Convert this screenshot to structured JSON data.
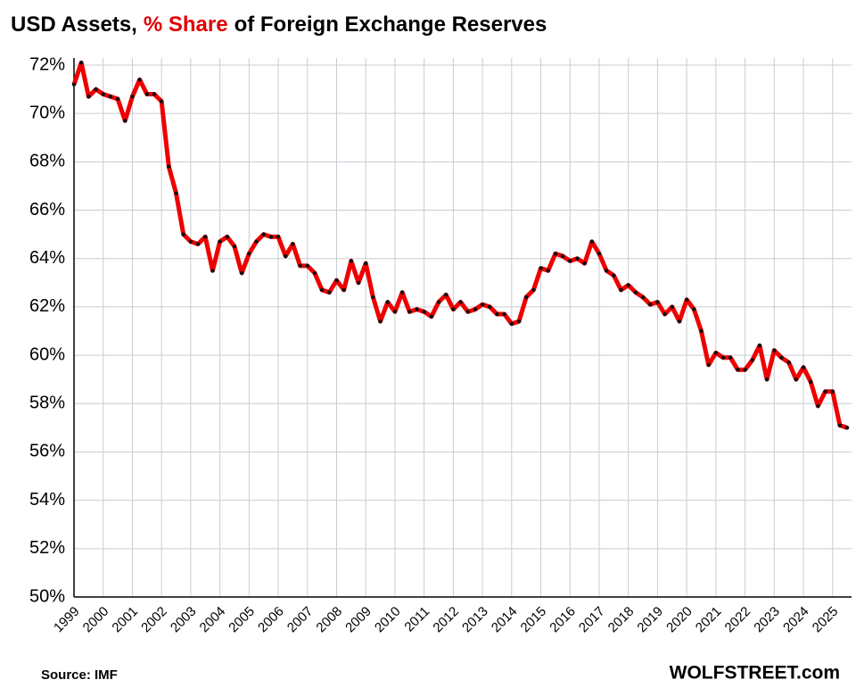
{
  "chart_data": {
    "type": "line",
    "title": [
      "USD Assets,",
      "% Share",
      "of Foreign Exchange Reserves"
    ],
    "title_colors": [
      "#000000",
      "#e00000",
      "#000000"
    ],
    "source": "Source: IMF",
    "brand": "WOLFSTREET.com",
    "color": "#ee0000",
    "marker_color": "#111111",
    "grid": true,
    "x": [
      1999,
      1999.25,
      1999.5,
      1999.75,
      2000,
      2000.25,
      2000.5,
      2000.75,
      2001,
      2001.25,
      2001.5,
      2001.75,
      2002,
      2002.25,
      2002.5,
      2002.75,
      2003,
      2003.25,
      2003.5,
      2003.75,
      2004,
      2004.25,
      2004.5,
      2004.75,
      2005,
      2005.25,
      2005.5,
      2005.75,
      2006,
      2006.25,
      2006.5,
      2006.75,
      2007,
      2007.25,
      2007.5,
      2007.75,
      2008,
      2008.25,
      2008.5,
      2008.75,
      2009,
      2009.25,
      2009.5,
      2009.75,
      2010,
      2010.25,
      2010.5,
      2010.75,
      2011,
      2011.25,
      2011.5,
      2011.75,
      2012,
      2012.25,
      2012.5,
      2012.75,
      2013,
      2013.25,
      2013.5,
      2013.75,
      2014,
      2014.25,
      2014.5,
      2014.75,
      2015,
      2015.25,
      2015.5,
      2015.75,
      2016,
      2016.25,
      2016.5,
      2016.75,
      2017,
      2017.25,
      2017.5,
      2017.75,
      2018,
      2018.25,
      2018.5,
      2018.75,
      2019,
      2019.25,
      2019.5,
      2019.75,
      2020,
      2020.25,
      2020.5,
      2020.75,
      2021,
      2021.25,
      2021.5,
      2021.75,
      2022,
      2022.25,
      2022.5,
      2022.75,
      2023,
      2023.25,
      2023.5,
      2023.75,
      2024,
      2024.25,
      2024.5,
      2024.75,
      2025,
      2025.25,
      2025.5
    ],
    "values": [
      71.2,
      72.1,
      70.7,
      71.0,
      70.8,
      70.7,
      70.6,
      69.7,
      70.7,
      71.4,
      70.8,
      70.8,
      70.5,
      67.8,
      66.7,
      65.0,
      64.7,
      64.6,
      64.9,
      63.5,
      64.7,
      64.9,
      64.5,
      63.4,
      64.2,
      64.7,
      65.0,
      64.9,
      64.9,
      64.1,
      64.6,
      63.7,
      63.7,
      63.4,
      62.7,
      62.6,
      63.1,
      62.7,
      63.9,
      63.0,
      63.8,
      62.4,
      61.4,
      62.2,
      61.8,
      62.6,
      61.8,
      61.9,
      61.8,
      61.6,
      62.2,
      62.5,
      61.9,
      62.2,
      61.8,
      61.9,
      62.1,
      62.0,
      61.7,
      61.7,
      61.3,
      61.4,
      62.4,
      62.7,
      63.6,
      63.5,
      64.2,
      64.1,
      63.9,
      64.0,
      63.8,
      64.7,
      64.2,
      63.5,
      63.3,
      62.7,
      62.9,
      62.6,
      62.4,
      62.1,
      62.2,
      61.7,
      62.0,
      61.4,
      62.3,
      61.9,
      61.0,
      59.6,
      60.1,
      59.9,
      59.9,
      59.4,
      59.4,
      59.8,
      60.4,
      59.0,
      60.2,
      59.9,
      59.7,
      59.0,
      59.5,
      58.9,
      57.9,
      58.5,
      58.5,
      57.1,
      57.0
    ],
    "xlim": [
      1999,
      2025.65
    ],
    "xticks": [
      1999,
      2000,
      2001,
      2002,
      2003,
      2004,
      2005,
      2006,
      2007,
      2008,
      2009,
      2010,
      2011,
      2012,
      2013,
      2014,
      2015,
      2016,
      2017,
      2018,
      2019,
      2020,
      2021,
      2022,
      2023,
      2024,
      2025
    ],
    "ylim": [
      50,
      72
    ],
    "yticks": [
      {
        "value": 50,
        "label": "50%"
      },
      {
        "value": 52,
        "label": "52%"
      },
      {
        "value": 54,
        "label": "54%"
      },
      {
        "value": 56,
        "label": "56%"
      },
      {
        "value": 58,
        "label": "58%"
      },
      {
        "value": 60,
        "label": "60%"
      },
      {
        "value": 62,
        "label": "62%"
      },
      {
        "value": 64,
        "label": "64%"
      },
      {
        "value": 66,
        "label": "66%"
      },
      {
        "value": 68,
        "label": "68%"
      },
      {
        "value": 70,
        "label": "70%"
      },
      {
        "value": 72,
        "label": "72%"
      }
    ]
  }
}
